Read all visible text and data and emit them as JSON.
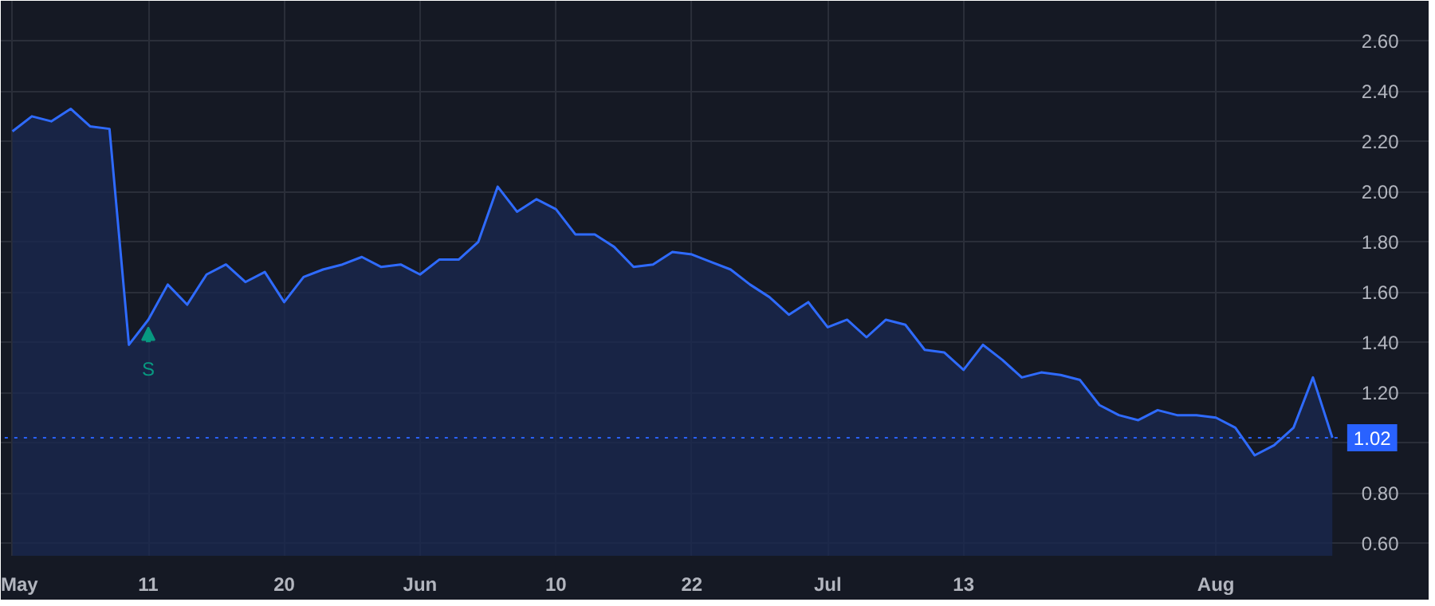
{
  "chart_data": {
    "type": "area",
    "categories": [
      "May",
      null,
      null,
      null,
      null,
      null,
      null,
      "11",
      null,
      null,
      null,
      null,
      null,
      null,
      "20",
      null,
      null,
      null,
      null,
      null,
      null,
      "Jun",
      null,
      null,
      null,
      null,
      null,
      null,
      "10",
      null,
      null,
      null,
      null,
      null,
      null,
      "22",
      null,
      null,
      null,
      null,
      null,
      null,
      "Jul",
      null,
      null,
      null,
      null,
      null,
      null,
      "13",
      null,
      null,
      null,
      null,
      null,
      null,
      null,
      null,
      null,
      null,
      null,
      null,
      "Aug",
      null,
      null,
      null,
      null,
      null,
      null
    ],
    "series": [
      {
        "color": "#2f6bff",
        "values": [
          2.24,
          2.3,
          2.28,
          2.33,
          2.26,
          2.25,
          1.39,
          1.49,
          1.63,
          1.55,
          1.67,
          1.71,
          1.64,
          1.68,
          1.56,
          1.66,
          1.69,
          1.71,
          1.74,
          1.7,
          1.71,
          1.67,
          1.73,
          1.73,
          1.8,
          2.02,
          1.92,
          1.97,
          1.93,
          1.83,
          1.83,
          1.78,
          1.7,
          1.71,
          1.76,
          1.75,
          1.72,
          1.69,
          1.63,
          1.58,
          1.51,
          1.56,
          1.46,
          1.49,
          1.42,
          1.49,
          1.47,
          1.37,
          1.36,
          1.29,
          1.39,
          1.33,
          1.26,
          1.28,
          1.27,
          1.25,
          1.15,
          1.11,
          1.09,
          1.13,
          1.11,
          1.11,
          1.1,
          1.06,
          0.95,
          0.99,
          1.06,
          1.26,
          1.02
        ]
      }
    ],
    "ylim": [
      0.55,
      2.76
    ],
    "yticks": [
      {
        "value": 0.6,
        "label": "0.60"
      },
      {
        "value": 0.8,
        "label": "0.80"
      },
      {
        "value": 1.0,
        "label": null
      },
      {
        "value": 1.2,
        "label": "1.20"
      },
      {
        "value": 1.4,
        "label": "1.40"
      },
      {
        "value": 1.6,
        "label": "1.60"
      },
      {
        "value": 1.8,
        "label": "1.80"
      },
      {
        "value": 2.0,
        "label": "2.00"
      },
      {
        "value": 2.2,
        "label": "2.20"
      },
      {
        "value": 2.4,
        "label": "2.40"
      },
      {
        "value": 2.6,
        "label": "2.60"
      }
    ],
    "ref_lines": [
      {
        "axis": "y",
        "value": 1.02,
        "label": "1.02",
        "color": "#2962ff",
        "line_style": "dotted"
      }
    ],
    "annotations": [
      {
        "text": "S",
        "x": "11",
        "y": 1.49
      }
    ],
    "grid": true,
    "marker": "none",
    "line_style": "solid"
  }
}
